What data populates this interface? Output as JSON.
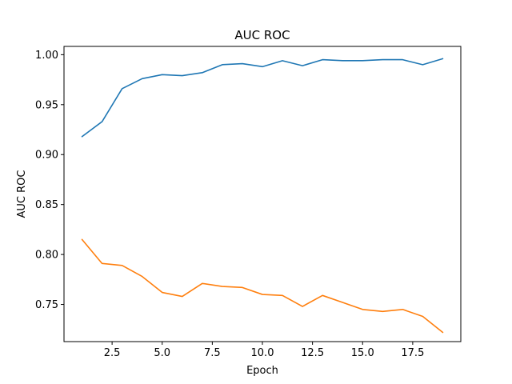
{
  "chart_data": {
    "type": "line",
    "title": "AUC ROC",
    "xlabel": "Epoch",
    "ylabel": "AUC ROC",
    "xlim": [
      0.1,
      19.9
    ],
    "ylim": [
      0.7128,
      1.0083
    ],
    "xticks": [
      2.5,
      5.0,
      7.5,
      10.0,
      12.5,
      15.0,
      17.5
    ],
    "xtick_labels": [
      "2.5",
      "5.0",
      "7.5",
      "10.0",
      "12.5",
      "15.0",
      "17.5"
    ],
    "yticks": [
      0.75,
      0.8,
      0.85,
      0.9,
      0.95,
      1.0
    ],
    "ytick_labels": [
      "0.75",
      "0.80",
      "0.85",
      "0.90",
      "0.95",
      "1.00"
    ],
    "grid": false,
    "x": [
      1,
      2,
      3,
      4,
      5,
      6,
      7,
      8,
      9,
      10,
      11,
      12,
      13,
      14,
      15,
      16,
      17,
      18,
      19
    ],
    "series": [
      {
        "color": "#1f77b4",
        "values": [
          0.918,
          0.933,
          0.966,
          0.976,
          0.98,
          0.979,
          0.982,
          0.99,
          0.991,
          0.988,
          0.994,
          0.989,
          0.995,
          0.994,
          0.994,
          0.995,
          0.995,
          0.99,
          0.996
        ]
      },
      {
        "color": "#ff7f0e",
        "values": [
          0.815,
          0.791,
          0.789,
          0.778,
          0.762,
          0.758,
          0.771,
          0.768,
          0.767,
          0.76,
          0.759,
          0.748,
          0.759,
          0.752,
          0.745,
          0.743,
          0.745,
          0.738,
          0.722
        ]
      }
    ]
  }
}
